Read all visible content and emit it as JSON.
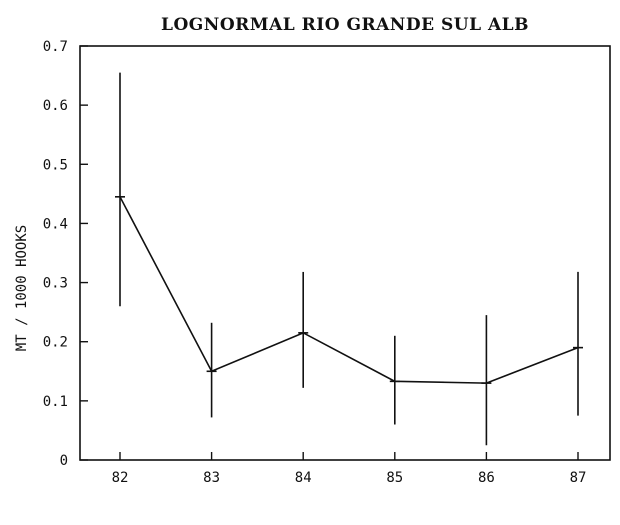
{
  "chart_data": {
    "type": "line",
    "title": "LOGNORMAL RIO GRANDE SUL ALB",
    "xlabel": "",
    "ylabel": "MT / 1000 HOOKS",
    "categories": [
      "82",
      "83",
      "84",
      "85",
      "86",
      "87"
    ],
    "series": [
      {
        "values": [
          0.445,
          0.15,
          0.215,
          0.133,
          0.13,
          0.19
        ],
        "error_low": [
          0.26,
          0.072,
          0.122,
          0.06,
          0.025,
          0.075
        ],
        "error_high": [
          0.655,
          0.232,
          0.318,
          0.21,
          0.245,
          0.318
        ]
      }
    ],
    "ylim": [
      0,
      0.7
    ],
    "yticks": [
      "0",
      "0.1",
      "0.2",
      "0.3",
      "0.4",
      "0.5",
      "0.6",
      "0.7"
    ],
    "grid": false,
    "legend": "none"
  }
}
